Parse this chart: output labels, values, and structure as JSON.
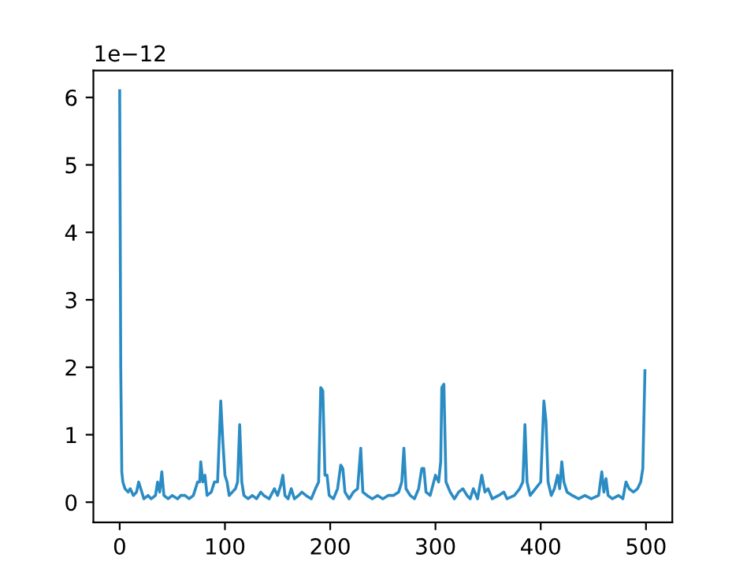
{
  "chart_data": {
    "type": "line",
    "x": [
      0,
      1,
      2,
      3,
      5,
      8,
      10,
      13,
      16,
      18,
      20,
      23,
      27,
      30,
      34,
      36,
      38,
      40,
      42,
      46,
      50,
      55,
      58,
      62,
      66,
      70,
      74,
      76,
      77,
      79,
      81,
      83,
      87,
      90,
      93,
      96,
      98,
      100,
      102,
      104,
      107,
      110,
      112,
      114,
      116,
      118,
      122,
      126,
      130,
      134,
      137,
      142,
      147,
      150,
      153,
      155,
      157,
      160,
      163,
      166,
      170,
      173,
      177,
      182,
      186,
      189,
      191,
      193,
      195,
      197,
      199,
      203,
      207,
      210,
      212,
      214,
      218,
      222,
      226,
      229,
      231,
      235,
      240,
      245,
      250,
      255,
      260,
      265,
      268,
      270,
      272,
      276,
      280,
      284,
      287,
      289,
      291,
      295,
      300,
      303,
      305,
      306,
      308,
      310,
      314,
      318,
      322,
      326,
      330,
      333,
      336,
      340,
      344,
      347,
      350,
      354,
      360,
      365,
      368,
      375,
      380,
      383,
      385,
      387,
      390,
      395,
      400,
      403,
      405,
      407,
      410,
      413,
      416,
      418,
      420,
      422,
      425,
      430,
      436,
      442,
      448,
      455,
      458,
      460,
      462,
      464,
      468,
      474,
      478,
      481,
      484,
      488,
      492,
      495,
      497,
      499
    ],
    "series": [
      {
        "color": "#2b8cc4",
        "values": [
          6.1,
          2.0,
          0.45,
          0.3,
          0.2,
          0.15,
          0.2,
          0.1,
          0.15,
          0.3,
          0.2,
          0.05,
          0.1,
          0.05,
          0.1,
          0.3,
          0.15,
          0.45,
          0.1,
          0.05,
          0.1,
          0.05,
          0.1,
          0.1,
          0.05,
          0.1,
          0.3,
          0.3,
          0.6,
          0.3,
          0.4,
          0.1,
          0.15,
          0.3,
          0.3,
          1.5,
          0.9,
          0.4,
          0.3,
          0.1,
          0.15,
          0.2,
          0.3,
          1.15,
          0.3,
          0.1,
          0.05,
          0.1,
          0.05,
          0.15,
          0.1,
          0.05,
          0.2,
          0.1,
          0.25,
          0.4,
          0.1,
          0.05,
          0.2,
          0.05,
          0.1,
          0.15,
          0.1,
          0.05,
          0.2,
          0.3,
          1.7,
          1.65,
          0.4,
          0.4,
          0.1,
          0.05,
          0.2,
          0.55,
          0.5,
          0.15,
          0.05,
          0.15,
          0.2,
          0.8,
          0.15,
          0.1,
          0.05,
          0.1,
          0.05,
          0.1,
          0.1,
          0.15,
          0.3,
          0.8,
          0.2,
          0.1,
          0.05,
          0.2,
          0.5,
          0.5,
          0.15,
          0.1,
          0.4,
          0.3,
          0.6,
          1.7,
          1.75,
          0.3,
          0.15,
          0.05,
          0.15,
          0.2,
          0.1,
          0.05,
          0.2,
          0.05,
          0.4,
          0.15,
          0.2,
          0.05,
          0.1,
          0.15,
          0.05,
          0.1,
          0.2,
          0.3,
          1.15,
          0.3,
          0.1,
          0.2,
          0.3,
          1.5,
          1.2,
          0.3,
          0.1,
          0.2,
          0.4,
          0.2,
          0.6,
          0.3,
          0.15,
          0.1,
          0.05,
          0.1,
          0.05,
          0.1,
          0.45,
          0.15,
          0.35,
          0.1,
          0.05,
          0.1,
          0.05,
          0.3,
          0.2,
          0.15,
          0.2,
          0.3,
          0.5,
          1.95
        ]
      }
    ],
    "xlim": [
      -25,
      525
    ],
    "xticks": [
      0,
      100,
      200,
      300,
      400,
      500
    ],
    "ylim": [
      -0.3,
      6.4
    ],
    "yticks": [
      0,
      1,
      2,
      3,
      4,
      5,
      6
    ],
    "annotations": [
      "1e−12"
    ],
    "marker": "none",
    "line_style": "solid"
  }
}
